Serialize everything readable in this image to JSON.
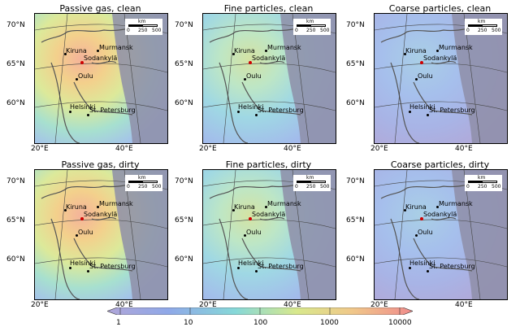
{
  "panels": [
    {
      "title": "Passive gas, clean",
      "palette": "warm"
    },
    {
      "title": "Fine particles, clean",
      "palette": "mid"
    },
    {
      "title": "Coarse particles, clean",
      "palette": "cool"
    },
    {
      "title": "Passive gas, dirty",
      "palette": "warm"
    },
    {
      "title": "Fine particles, dirty",
      "palette": "mid"
    },
    {
      "title": "Coarse particles, dirty",
      "palette": "cool"
    }
  ],
  "axes": {
    "lat_ticks": [
      "70°N",
      "65°N",
      "60°N"
    ],
    "lon_ticks": [
      "20°E",
      "40°E"
    ]
  },
  "scalebar": {
    "unit": "km",
    "ticks": [
      "0",
      "250",
      "500"
    ]
  },
  "cities": [
    {
      "name": "Kiruna",
      "marker": "dot"
    },
    {
      "name": "Murmansk",
      "marker": "dot"
    },
    {
      "name": "Sodankylä",
      "marker": "red"
    },
    {
      "name": "Oulu",
      "marker": "dot"
    },
    {
      "name": "Helsinki",
      "marker": "dot"
    },
    {
      "name": "St. Petersburg",
      "marker": "dot"
    }
  ],
  "colorbar": {
    "scale": "log",
    "labels": [
      "1",
      "10",
      "100",
      "1000",
      "10000"
    ],
    "colors": [
      "#b0a6d8",
      "#8fa8e8",
      "#86d8d8",
      "#d8e88c",
      "#f0c88a",
      "#f08c8c"
    ]
  }
}
